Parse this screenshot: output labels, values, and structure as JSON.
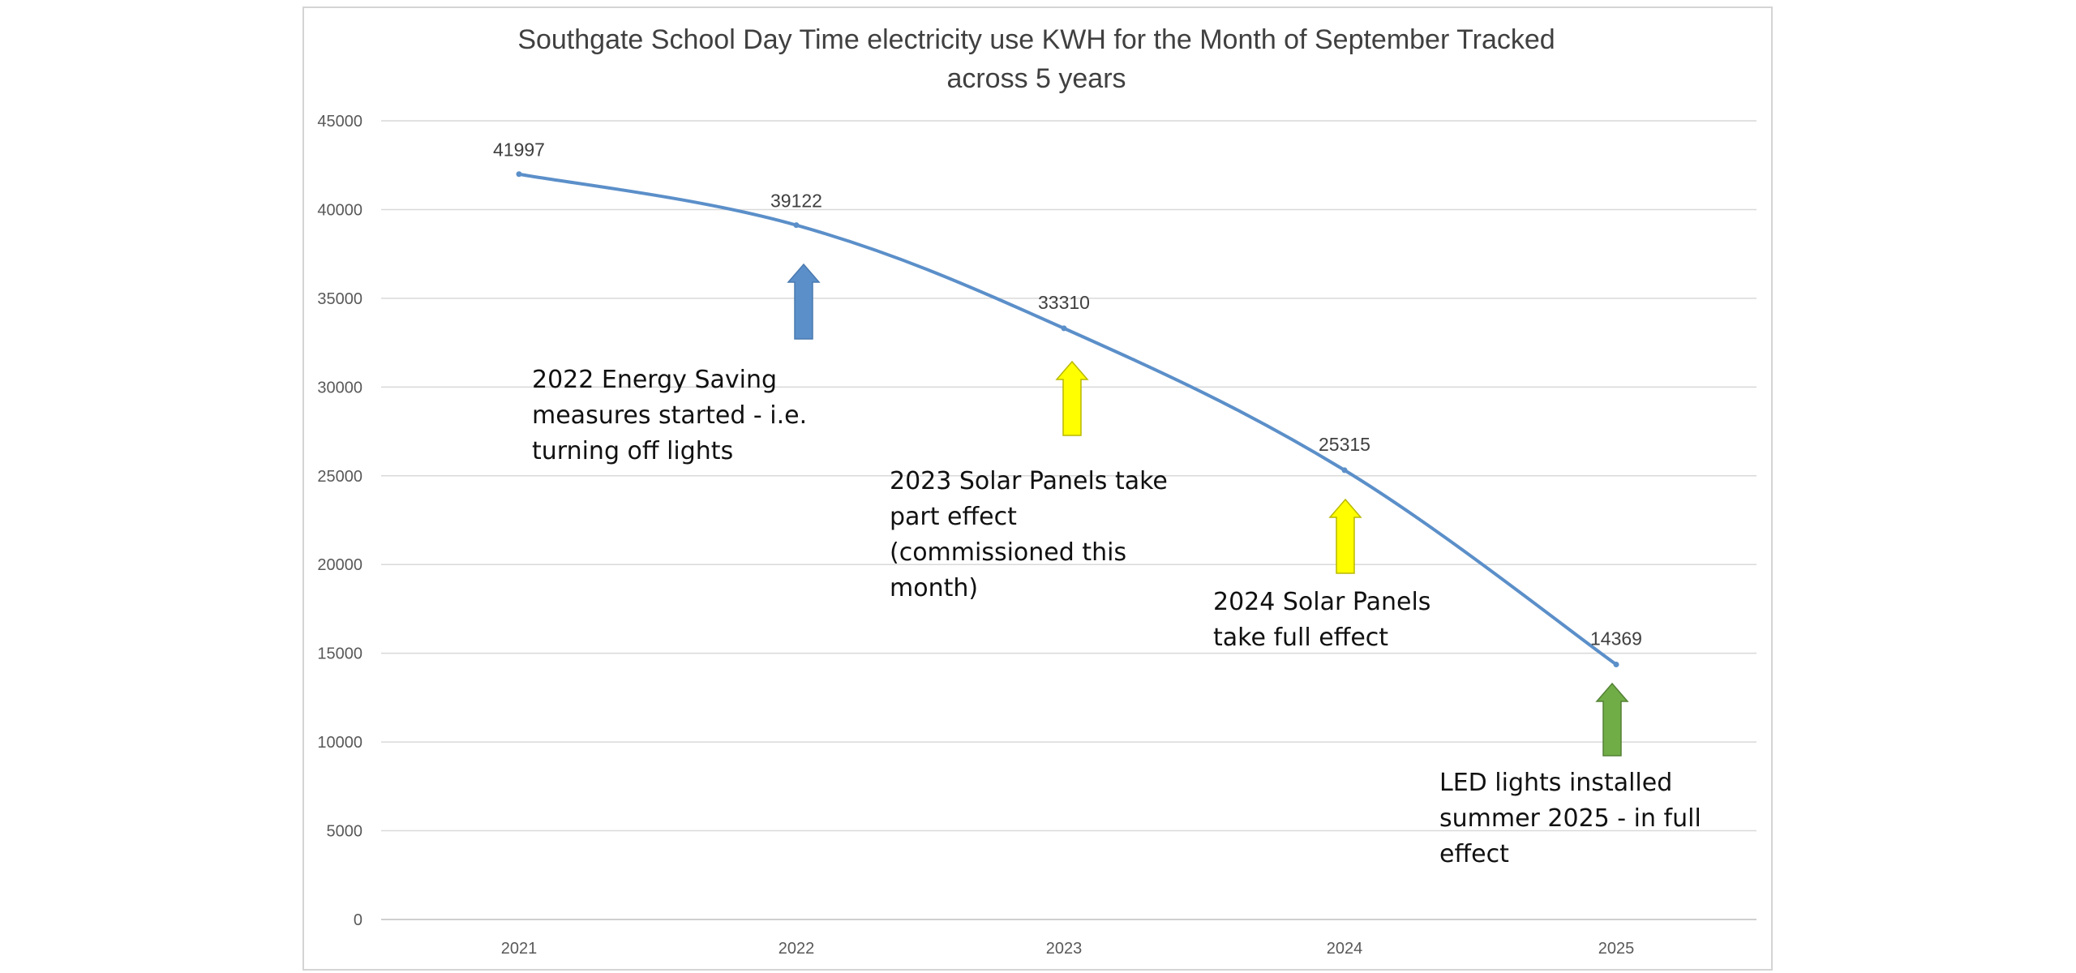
{
  "chart_data": {
    "type": "line",
    "title": "Southgate School Day Time electricity use KWH for the Month of September Tracked across 5 years",
    "title_lines": [
      "Southgate School Day Time electricity use KWH for the Month of September Tracked",
      "across 5 years"
    ],
    "xlabel": "",
    "ylabel": "",
    "categories": [
      "2021",
      "2022",
      "2023",
      "2024",
      "2025"
    ],
    "series": [
      {
        "values": [
          41997,
          39122,
          33310,
          25315,
          14369
        ],
        "data_labels": [
          "41997",
          "39122",
          "33310",
          "25315",
          "14369"
        ],
        "color": "#5b8fc9"
      }
    ],
    "ylim": [
      0,
      45000
    ],
    "yticks": [
      0,
      5000,
      10000,
      15000,
      20000,
      25000,
      30000,
      35000,
      40000,
      45000
    ],
    "ytick_labels": [
      "0",
      "5000",
      "10000",
      "15000",
      "20000",
      "25000",
      "30000",
      "35000",
      "40000",
      "45000"
    ],
    "grid": true,
    "legend": "none",
    "annotations": [
      {
        "category": "2022",
        "arrow_color": "#5b8fc9",
        "arrow_stroke": "#4a7ab0",
        "lines": [
          "2022 Energy Saving",
          "measures started - i.e.",
          "turning off lights"
        ]
      },
      {
        "category": "2023",
        "arrow_color": "#ffff00",
        "arrow_stroke": "#b8b800",
        "lines": [
          "2023 Solar Panels take",
          "part effect",
          "(commissioned this",
          "month)"
        ]
      },
      {
        "category": "2024",
        "arrow_color": "#ffff00",
        "arrow_stroke": "#b8b800",
        "lines": [
          "2024 Solar Panels",
          "take full effect"
        ]
      },
      {
        "category": "2025",
        "arrow_color": "#70ad47",
        "arrow_stroke": "#548235",
        "lines": [
          "LED lights installed",
          "summer 2025 - in full",
          "effect"
        ]
      }
    ]
  }
}
